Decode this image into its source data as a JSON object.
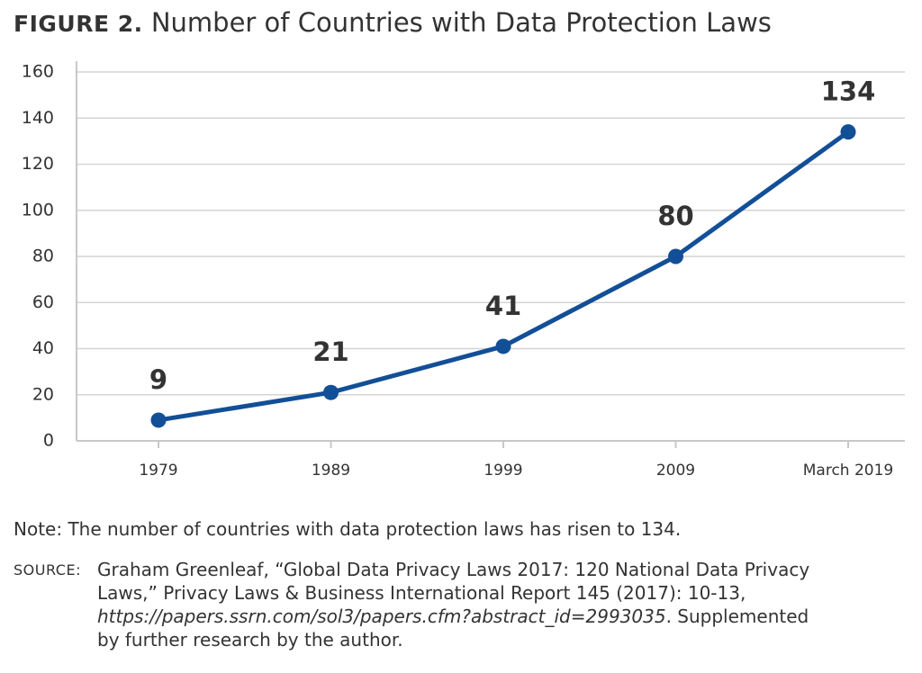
{
  "figure_label": "FIGURE 2.",
  "chart_data": {
    "type": "line",
    "title": "Number of Countries with Data Protection Laws",
    "categories": [
      "1979",
      "1989",
      "1999",
      "2009",
      "March 2019"
    ],
    "values": [
      9,
      21,
      41,
      80,
      134
    ],
    "color": "#124f97",
    "ylim": [
      0,
      160
    ],
    "yticks": [
      0,
      20,
      40,
      60,
      80,
      100,
      120,
      140,
      160
    ],
    "grid": true
  },
  "note": "Note: The number of countries with data protection laws has risen to 134.",
  "source": {
    "label": "SOURCE:",
    "text_before": "Graham Greenleaf, “Global Data Privacy Laws 2017: 120 National Data Privacy Laws,” Privacy Laws & Business International Report 145 (2017): 10-13, ",
    "url": "https://papers.ssrn.com/sol3/papers.cfm?abstract_id=2993035",
    "text_after": ". Supplemented by further research by the author."
  }
}
